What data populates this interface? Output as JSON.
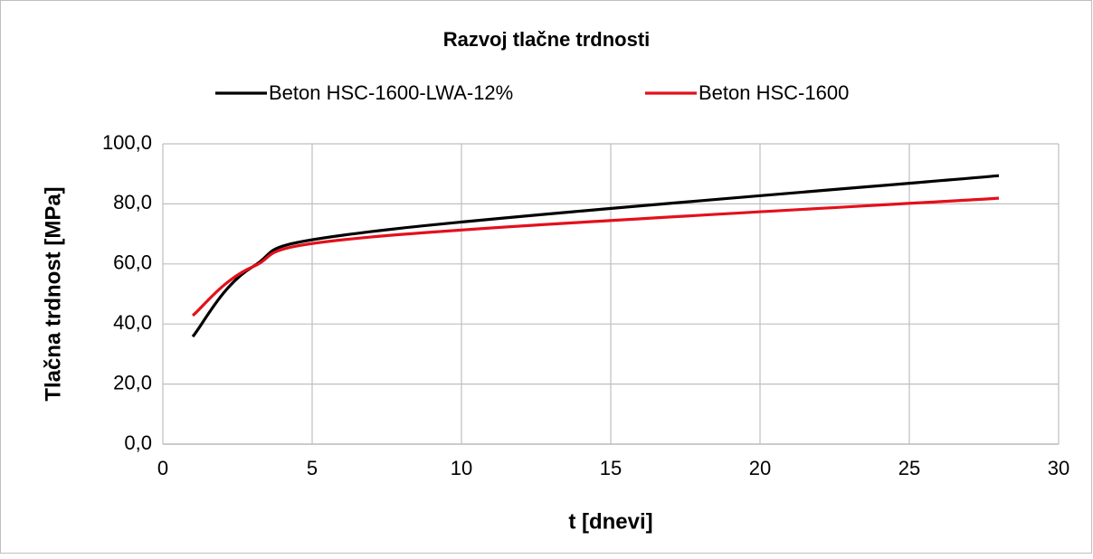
{
  "chart_data": {
    "type": "line",
    "title": "Razvoj tlačne trdnosti",
    "x_label": "t [dnevi]",
    "y_label": "Tlačna trdnost [MPa]",
    "x": [
      1,
      3,
      7,
      28
    ],
    "series": [
      {
        "name": "Beton HSC-1600-LWA-12%",
        "color": "#000000",
        "values": [
          35.8,
          59,
          70.8,
          89.4
        ]
      },
      {
        "name": "Beton HSC-1600",
        "color": "#e3101b",
        "values": [
          42.8,
          59,
          69,
          81.9
        ]
      }
    ],
    "xlim": [
      0,
      30
    ],
    "xticks": [
      0,
      5,
      10,
      15,
      20,
      25,
      30
    ],
    "ylim": [
      0,
      100
    ],
    "yticks": [
      {
        "value": 0,
        "label": "0,0"
      },
      {
        "value": 20,
        "label": "20,0"
      },
      {
        "value": 40,
        "label": "40,0"
      },
      {
        "value": 60,
        "label": "60,0"
      },
      {
        "value": 80,
        "label": "80,0"
      },
      {
        "value": 100,
        "label": "100,0"
      }
    ],
    "grid": true,
    "smooth": true,
    "legend": "top"
  }
}
